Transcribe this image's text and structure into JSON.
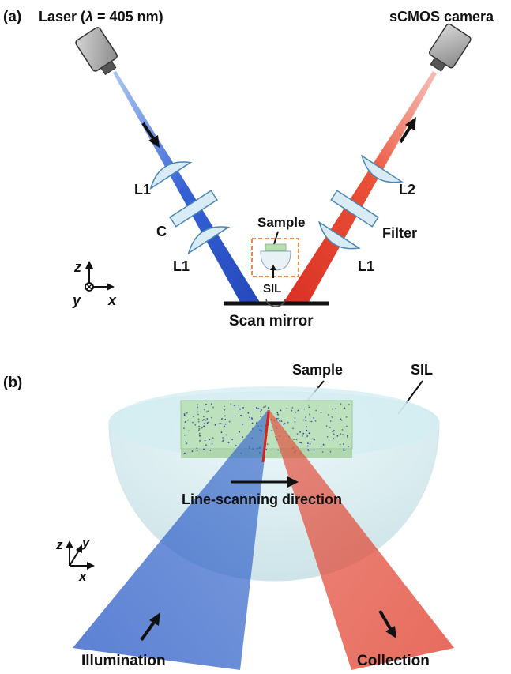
{
  "panel_a": {
    "label": "(a)",
    "laser_prefix": "Laser (",
    "laser_symbol": "λ",
    "laser_suffix": " = 405 nm)",
    "camera_label": "sCMOS camera",
    "lens_l1_left_top": "L1",
    "lens_c": "C",
    "lens_l1_left_bottom": "L1",
    "lens_l2": "L2",
    "filter": "Filter",
    "lens_l1_right": "L1",
    "sample": "Sample",
    "sil": "SIL",
    "scan_mirror": "Scan mirror",
    "axis_z": "z",
    "axis_y": "y",
    "axis_x": "x"
  },
  "panel_b": {
    "label": "(b)",
    "sample": "Sample",
    "sil": "SIL",
    "scan_direction": "Line-scanning direction",
    "illumination": "Illumination",
    "collection": "Collection",
    "axis_z": "z",
    "axis_y": "y",
    "axis_x": "x"
  },
  "colors": {
    "illumination_blue": "#1f4fd0",
    "collection_red": "#e2311e",
    "lens_fill": "#d9ecf5",
    "lens_stroke": "#4a86b5",
    "sil_fill": "#cfe9ee",
    "sample_fill": "#b7ddb0",
    "highlight_box": "#ee7d2a"
  }
}
